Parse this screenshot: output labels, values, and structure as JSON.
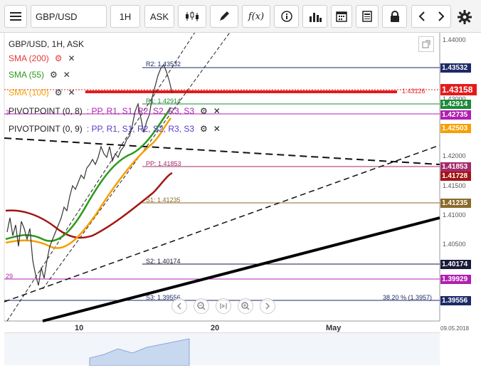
{
  "toolbar": {
    "symbol": "GBP/USD",
    "timeframe": "1H",
    "price_type": "ASK",
    "fx_label": "f(x)"
  },
  "chart": {
    "title": "GBP/USD, 1H, ASK",
    "legend": [
      {
        "label": "SMA (200)",
        "color": "#e23a3a"
      },
      {
        "label": "SMA (55)",
        "color": "#2a9a1a"
      },
      {
        "label": "SMA (100)",
        "color": "#f5a000"
      },
      {
        "label": "PIVOTPOINT (0, 8)",
        "suffix": ": PP, R1, S1, R2, S2, R3, S3"
      },
      {
        "label": "PIVOTPOINT (0, 9)",
        "suffix": ": PP, R1, S1, R2, S2, R3, S3"
      }
    ],
    "price_axis": [
      "1.44000",
      "1.43000",
      "1.42500",
      "1.42000",
      "1.41500",
      "1.41000",
      "1.40500",
      "1.40000"
    ],
    "price_tags": [
      {
        "value": "1.43532",
        "color": "#1c2a66"
      },
      {
        "value": "1.43158",
        "color": "#e21c1c"
      },
      {
        "value": "1.42914",
        "color": "#1e8a3a"
      },
      {
        "value": "1.42735",
        "color": "#b01fb0"
      },
      {
        "value": "1.42503",
        "color": "#f5a000"
      },
      {
        "value": "1.41853",
        "color": "#a32a6a"
      },
      {
        "value": "1.41728",
        "color": "#a31515"
      },
      {
        "value": "1.41235",
        "color": "#8b6a2a"
      },
      {
        "value": "1.40174",
        "color": "#1a1a3a"
      },
      {
        "value": "1.39929",
        "color": "#b01fb0"
      },
      {
        "value": "1.39556",
        "color": "#1c2a66"
      }
    ],
    "levels": [
      {
        "label": "R2: 1.43532"
      },
      {
        "label": "R1: 1.42914"
      },
      {
        "label": "PP: 1.41853"
      },
      {
        "label": "S1: 1.41235"
      },
      {
        "label": "S2: 1.40174"
      },
      {
        "label": "S3: 1.39556"
      }
    ],
    "sma_hint": "1.43126",
    "fib_label": "38.20 % (1.3957)",
    "date_axis": [
      "10",
      "20",
      "May"
    ],
    "date_corner": "09.05.2018",
    "left_edge_labels": [
      "3",
      "29"
    ]
  }
}
